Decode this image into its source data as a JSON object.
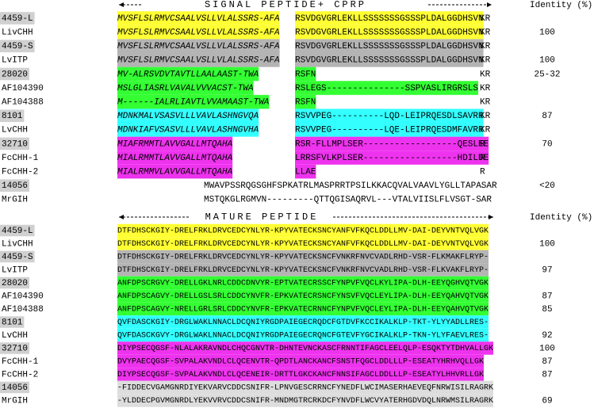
{
  "top": {
    "header": "SIGNAL PEPTIDE+ CPRP",
    "identity_header": "Identity (%)",
    "rows": [
      {
        "label": "4459-L",
        "label_shaded": true,
        "color": "#ffff33",
        "signal": "MVSFLSLRMVCSAALVSLLVLALSSRS-AFA",
        "cprp": "RSVDGVGRLEKLLSSSSSSSGSSSPLDALGGDHSVN",
        "end": "KR"
      },
      {
        "label": "LivCHH",
        "color": "#ffff33",
        "signal": "MVSFLSLRMVCSAALVSLLVLALSSRS-AFA",
        "cprp": "RSVDGVGRLEKLLSSSSSSSGSSSPLDALGGDHSVN",
        "end": "KR",
        "identity": "100"
      },
      {
        "label": "4459-S",
        "label_shaded": true,
        "color": "#b4b4b4",
        "signal": "MVSFLSLRMVCSAALVSLLVLALSSRS-AFA",
        "cprp": "RSVDGVGRLEKLLSSSSSSSGSSSPLDALGGDHSVN",
        "end": "KR"
      },
      {
        "label": "LvITP",
        "color": "#b4b4b4",
        "signal": "MVSFLSLRMVCSAALVSLLVLALSSRS-AFA",
        "cprp": "RSVDGVGRLEKLLSSSSSSSGSSSPLDALGGDHSVN",
        "end": "KR",
        "identity": "100"
      },
      {
        "label": "28020",
        "label_shaded": true,
        "color": "#33ff33",
        "signal": "MV-ALRSVDVTAVTLLAALAAST-TWA",
        "cprp": "RSFN",
        "end": "KR",
        "identity": "25-32"
      },
      {
        "label": "AF104390",
        "color": "#33ff33",
        "signal": "MSLGLIASRLVAVALVVVACST-TWA",
        "cprp": "RSLEGS---------------SSPVASLIRGRSLS",
        "end": "KR"
      },
      {
        "label": "AF104388",
        "color": "#33ff33",
        "signal": "M------IALRLIAVTLVVAMAAST-TWA",
        "cprp": "RSFN",
        "end": "KR"
      },
      {
        "label": "8101",
        "label_shaded": true,
        "color": "#33ffff",
        "signal": "MDNKMALVSASVLLLVAVLASHNGVQA",
        "cprp": "RSVVPEG----------LQD-LEIPRQESDLSAVRR",
        "end": "KR",
        "identity": "87"
      },
      {
        "label": "LvCHH",
        "color": "#33ffff",
        "signal": "MDNKIAFVSASVLLLVAVLASHNGVHA",
        "cprp": "RSVVPEG----------LQE-LEIPRQESDMFAVRR",
        "end": "KR"
      },
      {
        "label": "32710",
        "label_shaded": true,
        "color": "#ee33ee",
        "signal": "MIAFRMMTLAVVGALLMTQAHA",
        "cprp": "RSR-FLLMPLSER------------------QESLEE",
        "end": "R",
        "identity": "70"
      },
      {
        "label": "FcCHH-1",
        "color": "#ee33ee",
        "signal": "MIALRMMTLAVVGALLMTQAHA",
        "cprp": "LRRSFVLKPLSER------------------HDILDE",
        "end": "R"
      },
      {
        "label": "FcCHH-2",
        "color": "#ee33ee",
        "signal": "MIALRMMVLAVVGALLMTQAHA",
        "cprp": "LLAE",
        "end": "R"
      },
      {
        "label": "14056",
        "label_shaded": true,
        "full": "MWAVPSSRQGSGHFSPKATRLMASPRRTPSILKKACQVALVAAVLYGLLTAPASAR",
        "identity": "<20"
      },
      {
        "label": "MrGIH",
        "full": "MSTQKGLRGMVN---------QTTQGISAQRVL---VTALVIISLFLVSGT-SAR"
      }
    ]
  },
  "bottom": {
    "header": "MATURE PEPTIDE",
    "identity_header": "Identity (%)",
    "rows": [
      {
        "label": "4459-L",
        "label_shaded": true,
        "color": "#ffff33",
        "seq": "DTFDHSCKGIY-DRELFRKLDRVCEDCYNLYR-KPYVATECKSNCYANFVFKQCLDDLLMV-DAI-DEYVNTVQLVGK"
      },
      {
        "label": "LivCHH",
        "color": "#ffff33",
        "seq": "DTFDHSCKGIY-DRELFRKLDRVCEDCYNLYR-KPYVATECKSNCYANFVFKQCLDDLLMV-DAI-DEYVNTVQLVGK",
        "identity": "100"
      },
      {
        "label": "4459-S",
        "label_shaded": true,
        "color": "#b4b4b4",
        "seq": "DTFDHSCKGIY-DRELFRKLDRVCEDCYNLYR-KPYVATECKSNCFVNKRFNVCVADLRHD-VSR-FLKMAKFLRYP-"
      },
      {
        "label": "LvITP",
        "color": "#b4b4b4",
        "seq": "DTFDHSCKGIY-DRELFRKLDRVCEDCYNLYR-KPYVATECKSNCFVNKRFNVCVADLRHD-VSR-FLKVAKFLRYP-",
        "identity": "97"
      },
      {
        "label": "28020",
        "label_shaded": true,
        "color": "#33ff33",
        "seq": "ANFDPSCRGVY-DRELLGKLNRLCDDCDNVYR-EPTVATECRSSCFYNPVFVQCLKYLIPA-DLH-EEYQGHVQTVGK"
      },
      {
        "label": "AF104390",
        "color": "#33ff33",
        "seq": "ANFDPSCAGVY-DRELLGSLSRLCDDCYNVFR-EPKVATECRSNCFYNSVFVQCLEYLIPA-DLH-EEYQAHVQTVGK",
        "identity": "87"
      },
      {
        "label": "AF104388",
        "color": "#33ff33",
        "seq": "ANFDPSCAGVY-NRELLGRLSRLCDDCYNVFR-EPKVATECRNNCFYNPVFVQCLEYLIPA-DLH-EEYQAHVQTVGK",
        "identity": "85"
      },
      {
        "label": "8101",
        "label_shaded": true,
        "color": "#33ffff",
        "seq": "QVFDASCKGIY-DRGLWAKLNNACLDCQNIYRGDPAIEGECRQDCFGTDVFKCCIKALKLP-TKT-YLYYADLLRES-"
      },
      {
        "label": "LvCHH",
        "color": "#33ffff",
        "seq": "QVFDASCKGVY-DRGLWAKLNNACLDCQNIYRGDPAIEGECRQNCFGTEVFYGCIKALKLP-TKN-YLYFAEVLRES-",
        "identity": "92"
      },
      {
        "label": "32710",
        "label_shaded": true,
        "color": "#ee33ee",
        "seq": "DIYPSECQGSF-NLALAKRAVNDLCHQCGNVTR-DHNTEVNCKASCFRNNTIFAGCLEELQLP-ESQKTYTDHVALLGK",
        "identity": "100"
      },
      {
        "label": "FcCHH-1",
        "color": "#ee33ee",
        "seq": "DVYPAECQGSF-SVPALAKVNDLCLQCENVTR-QPDTLANCKANCFSNSTFQGCLDDLLLP-ESEATYHRHVQLLGK",
        "identity": "87"
      },
      {
        "label": "FcCHH-2",
        "color": "#ee33ee",
        "seq": "DIYPSECQGSF-SVPALAKVNDLCLQCENEIR-DRTTLGKCKANCFNNSIFAGCLDDLLLP-ESEATYLHHVRLLGK",
        "identity": "87"
      },
      {
        "label": "14056",
        "label_shaded": true,
        "color": "#dddddd",
        "seq": "-FIDDECVGAMGNRDIYEKVARVCDDCSNIFR-LPNVGESCRRNCFYNEDFLWCIMASERHAEVEQFNRWISILRAGRK"
      },
      {
        "label": "MrGIH",
        "color": "#dddddd",
        "seq": "-YLDDECPGVMGNRDLYEKVVRVCDDCSNIFR-MNDMGTRCRKDCFYNVDFLWCVYATERHGDVDQLNRWMSILRAGRK",
        "identity": "69"
      }
    ]
  }
}
